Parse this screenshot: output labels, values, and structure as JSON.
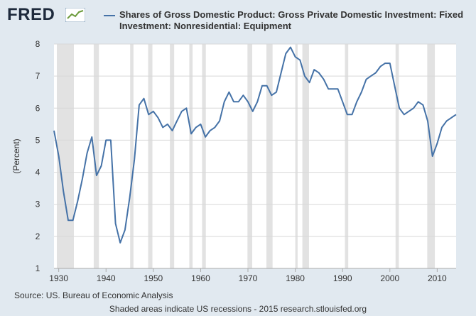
{
  "logo": {
    "text": "FRED"
  },
  "chart_data": {
    "type": "line",
    "title": "Shares of Gross Domestic Product: Gross Private Domestic Investment: Fixed Investment: Nonresidential: Equipment",
    "ylabel": "(Percent)",
    "xlabel": "",
    "xlim": [
      1929,
      2014
    ],
    "ylim": [
      1,
      8
    ],
    "xticks": [
      1930,
      1940,
      1950,
      1960,
      1970,
      1980,
      1990,
      2000,
      2010
    ],
    "yticks": [
      1,
      2,
      3,
      4,
      5,
      6,
      7,
      8
    ],
    "grid": "horizontal",
    "legend": "top",
    "line_color": "#4572a7",
    "recession_color": "#e2e2e2",
    "recessions": [
      [
        1929.6,
        1933.2
      ],
      [
        1937.4,
        1938.5
      ],
      [
        1945.1,
        1945.8
      ],
      [
        1948.9,
        1949.8
      ],
      [
        1953.5,
        1954.4
      ],
      [
        1957.6,
        1958.3
      ],
      [
        1960.3,
        1961.1
      ],
      [
        1969.9,
        1970.9
      ],
      [
        1973.9,
        1975.2
      ],
      [
        1980.0,
        1980.5
      ],
      [
        1981.5,
        1982.9
      ],
      [
        1990.5,
        1991.2
      ],
      [
        2001.2,
        2001.9
      ],
      [
        2007.9,
        2009.5
      ]
    ],
    "series": [
      {
        "name": "Shares of Gross Domestic Product: Gross Private Domestic Investment: Fixed Investment: Nonresidential: Equipment",
        "x": [
          1929,
          1930,
          1931,
          1932,
          1933,
          1934,
          1935,
          1936,
          1937,
          1938,
          1939,
          1940,
          1941,
          1942,
          1943,
          1944,
          1945,
          1946,
          1947,
          1948,
          1949,
          1950,
          1951,
          1952,
          1953,
          1954,
          1955,
          1956,
          1957,
          1958,
          1959,
          1960,
          1961,
          1962,
          1963,
          1964,
          1965,
          1966,
          1967,
          1968,
          1969,
          1970,
          1971,
          1972,
          1973,
          1974,
          1975,
          1976,
          1977,
          1978,
          1979,
          1980,
          1981,
          1982,
          1983,
          1984,
          1985,
          1986,
          1987,
          1988,
          1989,
          1990,
          1991,
          1992,
          1993,
          1994,
          1995,
          1996,
          1997,
          1998,
          1999,
          2000,
          2001,
          2002,
          2003,
          2004,
          2005,
          2006,
          2007,
          2008,
          2009,
          2010,
          2011,
          2012,
          2013,
          2014
        ],
        "values": [
          5.3,
          4.5,
          3.4,
          2.5,
          2.5,
          3.1,
          3.8,
          4.6,
          5.1,
          3.9,
          4.2,
          5.0,
          5.0,
          2.4,
          1.8,
          2.2,
          3.2,
          4.4,
          6.1,
          6.3,
          5.8,
          5.9,
          5.7,
          5.4,
          5.5,
          5.3,
          5.6,
          5.9,
          6.0,
          5.2,
          5.4,
          5.5,
          5.1,
          5.3,
          5.4,
          5.6,
          6.2,
          6.5,
          6.2,
          6.2,
          6.4,
          6.2,
          5.9,
          6.2,
          6.7,
          6.7,
          6.4,
          6.5,
          7.1,
          7.7,
          7.9,
          7.6,
          7.5,
          7.0,
          6.8,
          7.2,
          7.1,
          6.9,
          6.6,
          6.6,
          6.6,
          6.2,
          5.8,
          5.8,
          6.2,
          6.5,
          6.9,
          7.0,
          7.1,
          7.3,
          7.4,
          7.4,
          6.7,
          6.0,
          5.8,
          5.9,
          6.0,
          6.2,
          6.1,
          5.6,
          4.5,
          4.9,
          5.4,
          5.6,
          5.7,
          5.8
        ]
      }
    ]
  },
  "source": "Source: US. Bureau of Economic Analysis",
  "footnote": "Shaded areas indicate US recessions - 2015 research.stlouisfed.org"
}
